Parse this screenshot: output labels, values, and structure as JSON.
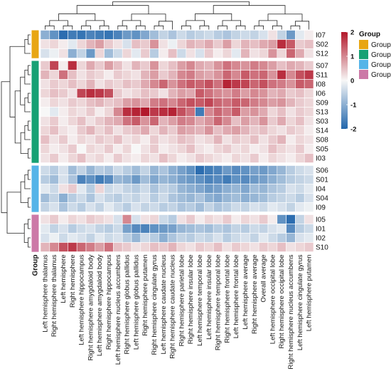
{
  "chart_data": {
    "type": "heatmap",
    "row_annotation_label": "Group",
    "rows": [
      "I07",
      "S02",
      "S12",
      "S07",
      "S11",
      "I08",
      "I06",
      "S09",
      "S13",
      "S03",
      "S14",
      "S08",
      "S05",
      "I03",
      "S06",
      "S01",
      "I04",
      "S04",
      "I09",
      "I05",
      "I01",
      "I02",
      "S10"
    ],
    "row_groups": [
      "Group A",
      "Group A",
      "Group A",
      "Group B",
      "Group B",
      "Group B",
      "Group B",
      "Group B",
      "Group B",
      "Group B",
      "Group B",
      "Group B",
      "Group B",
      "Group B",
      "Group C",
      "Group C",
      "Group C",
      "Group C",
      "Group C",
      "Group D",
      "Group D",
      "Group D",
      "Group D"
    ],
    "columns": [
      "Left hemisphere thalamus",
      "Right hemisphere thalamus",
      "Left hemisphere",
      "Right hemisphere",
      "Left hemisphere hippocampus",
      "Right hemisphere amygdaloid body",
      "Left hemisphere amygdaloid body",
      "Right hemisphere hippocampus",
      "Left hemisphere nucleus accumbens",
      "Right hemisphere globus pallidus",
      "Left hemisphere globus pallidus",
      "Right hemisphere putamen",
      "Right hemisphere cingulate gyrus",
      "Left hemisphere caudate nucleus",
      "Right hemisphere caudate nucleus",
      "Right hemisphere parietal lobe",
      "Right hemisphere insular lobe",
      "Left hemisphere temporal lobe",
      "Left hemisphere insular lobe",
      "Right hemisphere temporal lobe",
      "Right hemisphere frontal lobe",
      "Left hemisphere frontal lobe",
      "Left hemisphere average",
      "Right hemisphere average",
      "Overall average",
      "Left hemisphere occipital lobe",
      "Right hemisphere occipital lobe",
      "Right hemisphere nucleus accumbens",
      "Left hemisphere cingulate gyrus",
      "Left hemisphere putamen"
    ],
    "values": [
      [
        -1.0,
        -1.4,
        -1.9,
        -1.7,
        -1.8,
        -1.6,
        -1.7,
        -1.8,
        -1.6,
        -1.3,
        -1.4,
        -1.1,
        -0.8,
        -0.5,
        -0.7,
        -0.4,
        -0.6,
        -0.5,
        -0.4,
        -0.6,
        -0.7,
        -0.5,
        -0.4,
        -0.5,
        -0.3,
        0.2,
        -0.5,
        -1.3,
        -0.2,
        0.1
      ],
      [
        0.2,
        0.3,
        0.1,
        -0.2,
        0.3,
        0.6,
        0.8,
        0.4,
        0.2,
        -0.3,
        0.5,
        0.4,
        0.9,
        0.2,
        -0.1,
        0.3,
        0.6,
        0.5,
        0.7,
        0.4,
        0.8,
        0.3,
        0.6,
        0.5,
        0.7,
        0.8,
        1.8,
        1.4,
        0.4,
        0.5
      ],
      [
        -0.3,
        -0.1,
        0.2,
        -1.0,
        -0.5,
        -1.3,
        0.3,
        -0.8,
        -0.4,
        0.3,
        -0.2,
        0.4,
        -0.6,
        0.1,
        0.5,
        -0.4,
        0.2,
        -0.3,
        0.4,
        0.1,
        0.3,
        -0.2,
        0.6,
        0.2,
        0.3,
        0.9,
        0.3,
        1.3,
        0.7,
        0.2
      ],
      [
        0.4,
        1.6,
        0.1,
        1.8,
        0.3,
        0.7,
        0.4,
        0.8,
        0.5,
        0.2,
        0.6,
        0.4,
        0.9,
        0.3,
        0.5,
        0.8,
        1.0,
        0.7,
        0.6,
        0.9,
        1.2,
        1.0,
        0.9,
        1.1,
        1.0,
        0.8,
        0.5,
        0.7,
        0.6,
        0.4
      ],
      [
        0.6,
        0.3,
        1.2,
        0.5,
        0.2,
        0.4,
        0.3,
        0.1,
        0.4,
        0.3,
        0.2,
        0.6,
        0.8,
        0.4,
        0.6,
        1.0,
        1.1,
        0.8,
        0.7,
        0.9,
        1.3,
        1.0,
        1.4,
        1.2,
        1.3,
        0.9,
        1.8,
        1.0,
        1.5,
        1.7
      ],
      [
        0.2,
        0.4,
        0.3,
        0.5,
        0.3,
        0.6,
        0.2,
        0.4,
        0.3,
        0.5,
        0.4,
        0.7,
        1.0,
        1.3,
        0.9,
        1.2,
        1.4,
        1.3,
        1.5,
        1.2,
        1.9,
        1.7,
        1.6,
        1.3,
        1.5,
        1.2,
        1.1,
        0.9,
        1.4,
        1.3
      ],
      [
        0.3,
        0.5,
        0.4,
        0.2,
        1.6,
        1.8,
        1.7,
        1.5,
        0.4,
        0.2,
        0.3,
        0.5,
        0.4,
        0.2,
        0.6,
        0.8,
        0.7,
        1.4,
        1.2,
        1.0,
        0.9,
        1.1,
        0.8,
        1.0,
        0.9,
        0.6,
        0.7,
        0.4,
        0.5,
        0.3
      ],
      [
        0.1,
        0.3,
        0.2,
        0.4,
        0.3,
        0.5,
        0.6,
        0.4,
        0.5,
        0.8,
        0.9,
        0.7,
        1.1,
        1.2,
        1.0,
        1.3,
        1.5,
        1.4,
        1.6,
        1.3,
        1.2,
        1.4,
        1.3,
        1.1,
        1.0,
        0.8,
        0.9,
        0.6,
        0.4,
        0.3
      ],
      [
        0.0,
        -0.2,
        0.1,
        0.3,
        0.2,
        0.4,
        0.1,
        0.3,
        1.0,
        1.8,
        1.9,
        2.0,
        1.7,
        1.8,
        1.9,
        1.5,
        1.2,
        -1.7,
        1.0,
        1.3,
        1.1,
        1.4,
        0.8,
        0.9,
        0.7,
        0.3,
        0.5,
        0.2,
        0.4,
        0.3
      ],
      [
        0.2,
        0.4,
        0.1,
        0.3,
        0.5,
        0.2,
        0.4,
        0.6,
        0.7,
        1.2,
        1.4,
        0.9,
        1.3,
        0.6,
        0.8,
        1.1,
        1.0,
        0.7,
        0.9,
        1.3,
        1.0,
        0.5,
        0.8,
        0.6,
        0.9,
        0.4,
        0.7,
        0.3,
        0.5,
        0.2
      ],
      [
        0.3,
        0.5,
        0.2,
        0.1,
        0.4,
        0.6,
        0.3,
        0.5,
        0.2,
        0.4,
        0.5,
        0.7,
        0.3,
        0.6,
        0.4,
        0.8,
        0.7,
        0.6,
        0.9,
        0.5,
        0.7,
        0.8,
        0.6,
        0.4,
        0.5,
        0.3,
        0.2,
        0.4,
        0.3,
        0.1
      ],
      [
        0.5,
        0.2,
        0.4,
        0.1,
        0.3,
        0.2,
        0.4,
        0.3,
        0.5,
        0.2,
        0.3,
        0.1,
        0.4,
        0.2,
        0.3,
        0.5,
        0.4,
        0.2,
        0.3,
        0.6,
        0.2,
        0.4,
        0.3,
        0.5,
        0.2,
        0.4,
        0.6,
        0.1,
        0.3,
        0.2
      ],
      [
        0.3,
        0.1,
        0.2,
        0.4,
        0.0,
        0.3,
        0.2,
        0.4,
        0.1,
        0.3,
        0.0,
        0.2,
        0.4,
        0.1,
        0.2,
        0.3,
        0.5,
        0.2,
        0.1,
        0.3,
        0.4,
        0.2,
        0.3,
        0.1,
        0.2,
        0.5,
        0.3,
        0.2,
        0.4,
        0.1
      ],
      [
        0.2,
        0.4,
        0.1,
        0.3,
        0.5,
        0.2,
        0.3,
        0.1,
        0.4,
        0.2,
        0.1,
        0.3,
        0.2,
        0.5,
        0.3,
        0.1,
        0.2,
        0.4,
        0.3,
        0.2,
        0.1,
        0.3,
        0.2,
        0.4,
        0.1,
        0.3,
        0.2,
        0.1,
        0.3,
        0.5
      ],
      [
        -0.4,
        -0.6,
        -0.3,
        -0.8,
        -0.5,
        -0.9,
        -0.6,
        -0.7,
        -0.4,
        -0.6,
        -0.8,
        -0.5,
        -0.9,
        -0.7,
        -1.0,
        -1.2,
        -1.4,
        -1.9,
        -1.7,
        -1.6,
        -1.3,
        -1.5,
        -1.4,
        -1.2,
        -1.3,
        -1.1,
        -0.9,
        -0.6,
        -0.4,
        -0.3
      ],
      [
        -0.6,
        -0.8,
        -0.3,
        -0.7,
        -1.6,
        -1.4,
        -1.7,
        -1.5,
        -0.9,
        -1.0,
        -1.3,
        -0.8,
        -1.1,
        -0.9,
        -1.0,
        -1.2,
        -1.3,
        -1.4,
        -1.6,
        -1.5,
        -1.7,
        -1.4,
        -1.5,
        -1.3,
        -1.2,
        -1.0,
        -0.8,
        -0.6,
        -0.5,
        -0.4
      ],
      [
        -0.2,
        -0.4,
        0.2,
        0.4,
        -0.2,
        -0.6,
        0.3,
        -0.4,
        -0.3,
        -0.5,
        -0.6,
        -0.4,
        -0.7,
        -0.5,
        -0.6,
        -0.9,
        -1.0,
        -1.1,
        -1.3,
        -1.2,
        -1.0,
        -0.9,
        -1.1,
        -0.8,
        -0.9,
        -0.7,
        -0.6,
        -0.3,
        -0.4,
        -0.2
      ],
      [
        -0.8,
        -0.5,
        -1.0,
        -0.6,
        -0.4,
        -0.7,
        -0.3,
        -0.5,
        -0.6,
        -0.4,
        -0.5,
        -0.3,
        -0.6,
        -0.4,
        -0.7,
        -0.8,
        -0.9,
        -0.7,
        -1.0,
        -1.1,
        -0.9,
        -0.8,
        -1.0,
        -0.9,
        -0.8,
        -0.6,
        -0.5,
        -0.4,
        -0.6,
        -0.3
      ],
      [
        -0.5,
        -0.3,
        -0.7,
        -0.4,
        -0.6,
        -0.3,
        -0.5,
        -0.2,
        -0.4,
        -0.6,
        -0.3,
        -0.5,
        -0.4,
        -0.6,
        -0.5,
        -0.7,
        -0.6,
        -0.8,
        -0.5,
        -0.7,
        -0.6,
        -0.4,
        -0.5,
        -0.3,
        -0.4,
        -0.2,
        -0.3,
        -0.5,
        -0.2,
        -0.1
      ],
      [
        0.2,
        0.4,
        0.1,
        0.3,
        0.2,
        0.4,
        0.3,
        0.2,
        -0.3,
        1.0,
        -0.3,
        0.2,
        0.3,
        -0.4,
        -0.6,
        0.2,
        0.4,
        0.1,
        0.3,
        0.2,
        0.4,
        0.1,
        0.3,
        0.2,
        0.4,
        0.1,
        -1.4,
        -1.9,
        -0.5,
        0.2
      ],
      [
        -0.2,
        -0.5,
        -0.3,
        -0.6,
        -0.4,
        -0.3,
        -0.5,
        -0.6,
        -0.4,
        -1.2,
        -1.5,
        -1.6,
        -1.4,
        -1.3,
        -1.2,
        -0.9,
        -0.8,
        -0.7,
        -0.8,
        -0.6,
        -0.7,
        -0.5,
        -0.6,
        -0.4,
        -0.5,
        -0.3,
        -0.2,
        -1.5,
        -0.6,
        -0.4
      ],
      [
        -0.3,
        -0.1,
        -0.4,
        -0.2,
        -0.3,
        -0.5,
        -0.2,
        -0.4,
        -0.3,
        -0.6,
        -0.9,
        -0.4,
        -0.6,
        -1.0,
        -0.7,
        -0.5,
        -0.6,
        -0.4,
        -0.5,
        -0.3,
        -0.6,
        -0.4,
        -0.3,
        -0.5,
        -0.2,
        -0.4,
        -0.6,
        -0.9,
        -0.3,
        -0.2
      ],
      [
        0.6,
        1.0,
        1.5,
        1.7,
        1.3,
        1.1,
        0.8,
        1.2,
        0.5,
        0.4,
        0.2,
        0.3,
        0.5,
        0.4,
        0.6,
        0.3,
        0.2,
        0.4,
        0.3,
        0.5,
        0.2,
        0.4,
        0.3,
        0.2,
        0.4,
        0.3,
        0.5,
        0.2,
        0.3,
        0.4
      ]
    ],
    "color_scale": {
      "min": -2,
      "max": 2,
      "low": "#2166ac",
      "mid": "#f7f7f7",
      "high": "#b2182b",
      "ticks": [
        "2",
        "1",
        "0",
        "-1",
        "-2"
      ]
    },
    "legend": {
      "title": "Group",
      "items": [
        {
          "label": "Group A",
          "color": "#e8a613"
        },
        {
          "label": "Group B",
          "color": "#17a174"
        },
        {
          "label": "Group C",
          "color": "#55b4e8"
        },
        {
          "label": "Group D",
          "color": "#cc79a7"
        }
      ]
    }
  }
}
